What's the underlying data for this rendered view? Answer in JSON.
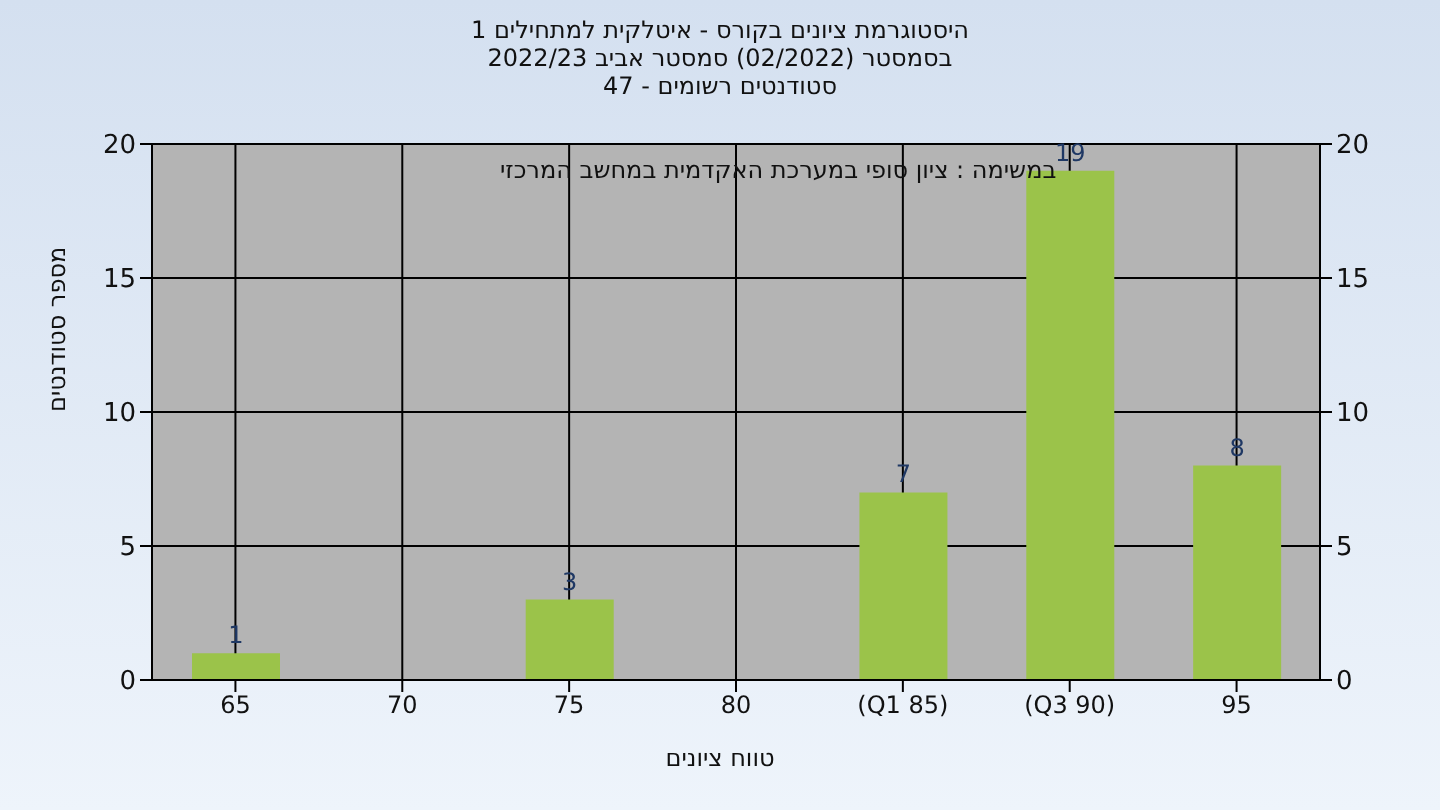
{
  "chart_data": {
    "type": "bar",
    "title": "היסטוגרמת ציונים בקורס - איטלקית למתחילים 1",
    "subtitle": "בסמסטר (02/2022) סמסטר אביב 2022/23",
    "annotations": [
      "סטודנטים רשומים - 47",
      "במשימה : ציון סופי במערכת האקדמית במחשב המרכזי"
    ],
    "xlabel": "טווח ציונים",
    "ylabel": "מספר סטודנטים",
    "categories": [
      "65",
      "70",
      "75",
      "80",
      "(Q1 85)",
      "(Q3 90)",
      "95"
    ],
    "values": [
      1,
      0,
      3,
      0,
      7,
      19,
      8
    ],
    "color": "#9bc34a",
    "ylim": [
      0,
      20
    ],
    "yticks": [
      0,
      5,
      10,
      15,
      20
    ],
    "y2lim": [
      0,
      20
    ],
    "y2ticks": [
      0,
      5,
      10,
      15,
      20
    ],
    "value_labels": [
      "1",
      null,
      "3",
      null,
      "7",
      "19",
      "8"
    ],
    "grid": true
  }
}
